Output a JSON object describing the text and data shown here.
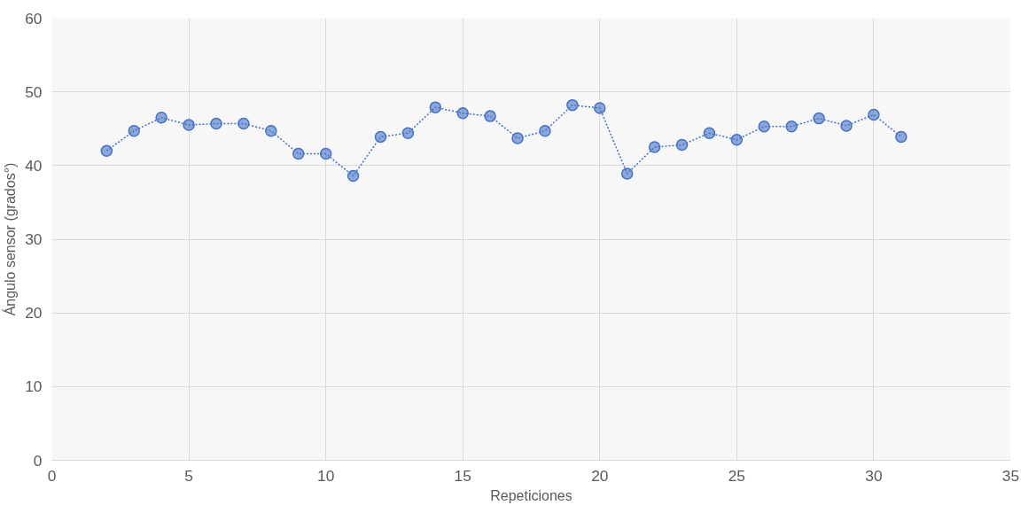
{
  "chart_data": {
    "type": "line",
    "xlabel": "Repeticiones",
    "ylabel": "Ángulo sensor (grados°)",
    "xlim": [
      0,
      35
    ],
    "xticks": [
      0,
      5,
      10,
      15,
      20,
      25,
      30,
      35
    ],
    "ylim": [
      0,
      60
    ],
    "yticks": [
      0,
      10,
      20,
      30,
      40,
      50,
      60
    ],
    "grid": true,
    "marker": "circle",
    "line_style": "dotted",
    "series": [
      {
        "color": "#4472c4",
        "x": [
          2,
          3,
          4,
          5,
          6,
          7,
          8,
          9,
          10,
          11,
          12,
          13,
          14,
          15,
          16,
          17,
          18,
          19,
          20,
          21,
          22,
          23,
          24,
          25,
          26,
          27,
          28,
          29,
          30,
          31
        ],
        "values": [
          42.0,
          44.7,
          46.5,
          45.5,
          45.7,
          45.7,
          44.7,
          41.6,
          41.6,
          38.6,
          43.9,
          44.4,
          47.9,
          47.1,
          46.7,
          43.7,
          44.7,
          48.2,
          47.8,
          38.9,
          42.5,
          42.8,
          44.4,
          43.5,
          45.3,
          45.3,
          46.4,
          45.4,
          46.9,
          43.9
        ]
      }
    ]
  }
}
